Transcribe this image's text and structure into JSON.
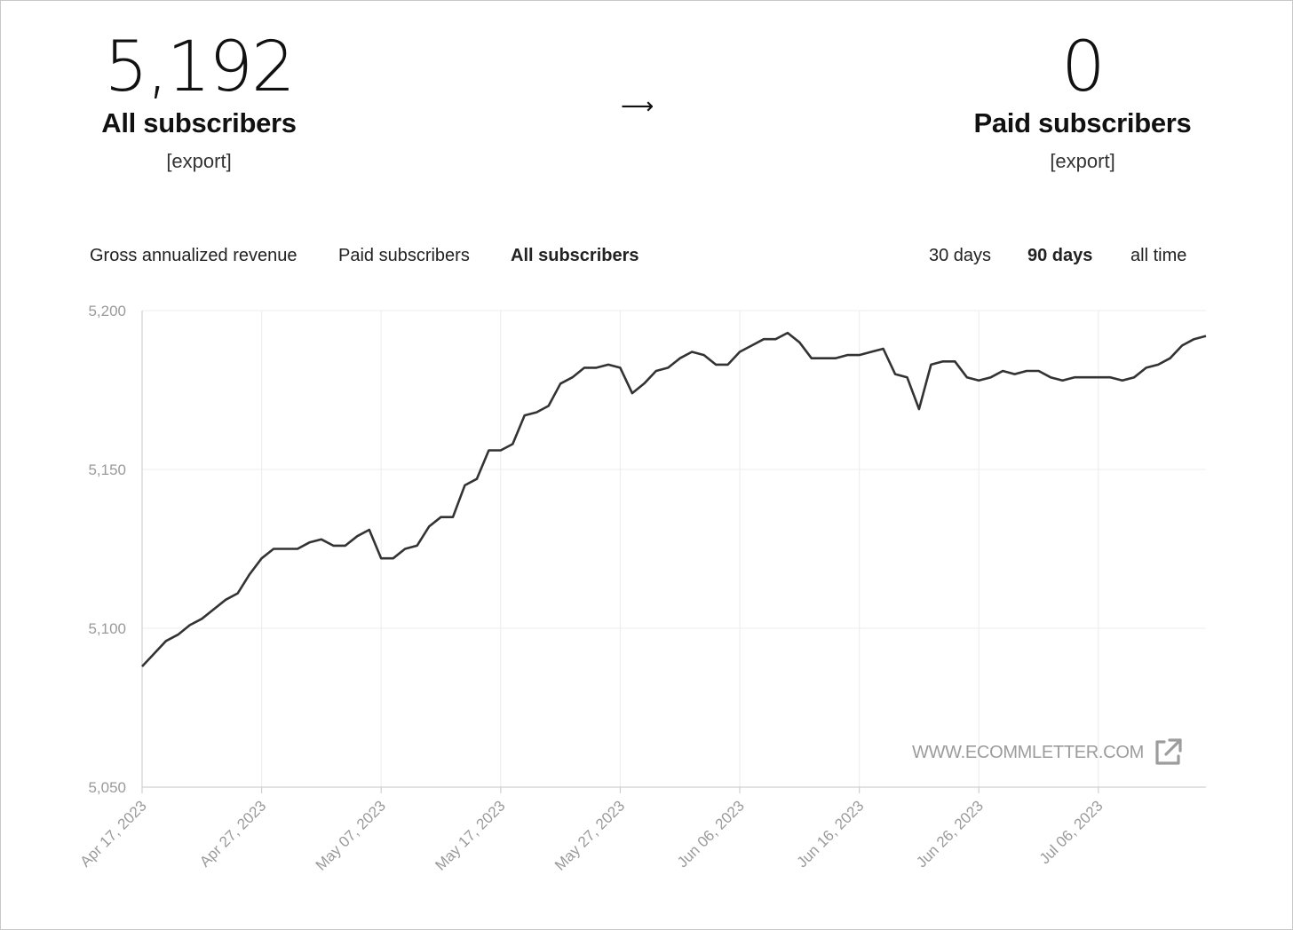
{
  "summary": {
    "all_subscribers": {
      "count": "5,192",
      "label": "All subscribers",
      "export": "[export]"
    },
    "arrow": "⟶",
    "paid_subscribers": {
      "count": "0",
      "label": "Paid subscribers",
      "export": "[export]"
    }
  },
  "metric_tabs": [
    {
      "label": "Gross annualized revenue",
      "active": false
    },
    {
      "label": "Paid subscribers",
      "active": false
    },
    {
      "label": "All subscribers",
      "active": true
    }
  ],
  "range_tabs": [
    {
      "label": "30 days",
      "active": false
    },
    {
      "label": "90 days",
      "active": true
    },
    {
      "label": "all time",
      "active": false
    }
  ],
  "watermark": {
    "text": "WWW.ECOMMLETTER.COM",
    "icon": "external-link-icon"
  },
  "chart_data": {
    "type": "line",
    "title": "",
    "xlabel": "",
    "ylabel": "",
    "ylim": [
      5050,
      5200
    ],
    "yticks": [
      "5,050",
      "5,100",
      "5,150",
      "5,200"
    ],
    "x_start": "2023-04-17",
    "x_end": "2023-07-15",
    "xticks": [
      "Apr 17, 2023",
      "Apr 27, 2023",
      "May 07, 2023",
      "May 17, 2023",
      "May 27, 2023",
      "Jun 06, 2023",
      "Jun 16, 2023",
      "Jun 26, 2023",
      "Jul 06, 2023"
    ],
    "grid": true,
    "series": [
      {
        "values": [
          5088,
          5092,
          5096,
          5098,
          5101,
          5103,
          5106,
          5109,
          5111,
          5117,
          5122,
          5125,
          5125,
          5125,
          5127,
          5128,
          5126,
          5126,
          5129,
          5131,
          5122,
          5122,
          5125,
          5126,
          5132,
          5135,
          5135,
          5145,
          5147,
          5156,
          5156,
          5158,
          5167,
          5168,
          5170,
          5177,
          5179,
          5182,
          5182,
          5183,
          5182,
          5174,
          5177,
          5181,
          5182,
          5185,
          5187,
          5186,
          5183,
          5183,
          5187,
          5189,
          5191,
          5191,
          5193,
          5190,
          5185,
          5185,
          5185,
          5186,
          5186,
          5187,
          5188,
          5180,
          5179,
          5169,
          5183,
          5184,
          5184,
          5179,
          5178,
          5179,
          5181,
          5180,
          5181,
          5181,
          5179,
          5178,
          5179,
          5179,
          5179,
          5179,
          5178,
          5179,
          5182,
          5183,
          5185,
          5189,
          5191,
          5192
        ],
        "color": "#333333"
      }
    ]
  }
}
